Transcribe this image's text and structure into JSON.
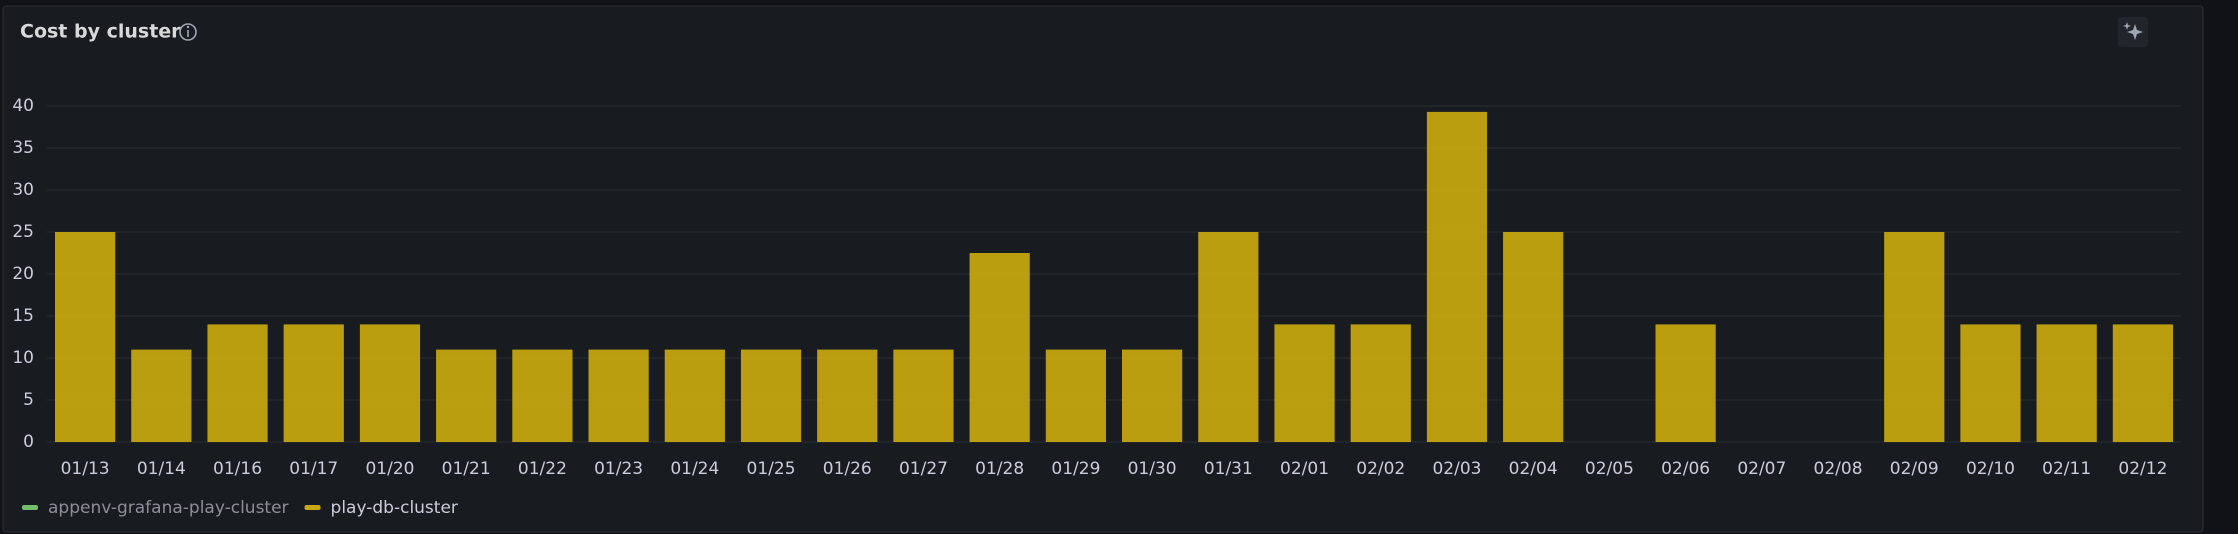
{
  "chart_data": {
    "type": "bar",
    "title": "Cost by cluster",
    "categories": [
      "01/13",
      "01/14",
      "01/16",
      "01/17",
      "01/20",
      "01/21",
      "01/22",
      "01/23",
      "01/24",
      "01/25",
      "01/26",
      "01/27",
      "01/28",
      "01/29",
      "01/30",
      "01/31",
      "02/01",
      "02/02",
      "02/03",
      "02/04",
      "02/05",
      "02/06",
      "02/07",
      "02/08",
      "02/09",
      "02/10",
      "02/11",
      "02/12"
    ],
    "series": [
      {
        "name": "appenv-grafana-play-cluster",
        "color": "#73bf69",
        "values": [
          0,
          0,
          0,
          0,
          0,
          0,
          0,
          0,
          0,
          0,
          0,
          0,
          0,
          0,
          0,
          0,
          0,
          0,
          0,
          0,
          0,
          0,
          0,
          0,
          0,
          0,
          0,
          0
        ]
      },
      {
        "name": "play-db-cluster",
        "color": "#c9a90f",
        "values": [
          25,
          11,
          14,
          14,
          14,
          11,
          11,
          11,
          11,
          11,
          11,
          11,
          22.5,
          11,
          11,
          25,
          14,
          14,
          39.3,
          25,
          0,
          14,
          0,
          0,
          25,
          14,
          14,
          14
        ]
      }
    ],
    "ylim": [
      0,
      40
    ],
    "yticks": [
      0,
      5,
      10,
      15,
      20,
      25,
      30,
      35,
      40
    ],
    "grid": true,
    "stacked": true,
    "legend": "bottom"
  }
}
